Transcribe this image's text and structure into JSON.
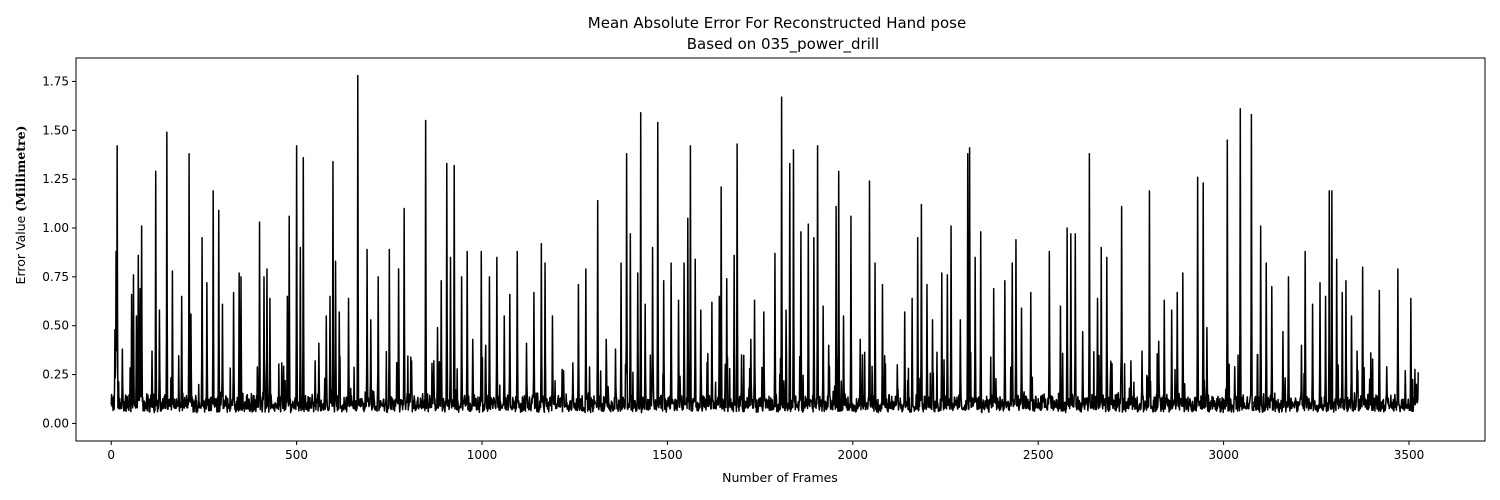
{
  "chart_data": {
    "type": "line",
    "title": "Mean Absolute Error For Reconstructed Hand pose",
    "subtitle": "Based on 035_power_drill",
    "xlabel": "Number of Frames",
    "ylabel_prefix": "Error Value ",
    "ylabel_unit": "(Millimetre)",
    "xlim": [
      -95,
      3705
    ],
    "ylim": [
      -0.09,
      1.87
    ],
    "xticks": [
      0,
      500,
      1000,
      1500,
      2000,
      2500,
      3000,
      3500
    ],
    "yticks": [
      0.0,
      0.25,
      0.5,
      0.75,
      1.0,
      1.25,
      1.5,
      1.75
    ],
    "xtick_labels": [
      "0",
      "500",
      "1000",
      "1500",
      "2000",
      "2500",
      "3000",
      "3500"
    ],
    "ytick_labels": [
      "0.00",
      "0.25",
      "0.50",
      "0.75",
      "1.00",
      "1.25",
      "1.50",
      "1.75"
    ],
    "grid": false,
    "series": [
      {
        "color": "#000000",
        "n_frames": 3526,
        "baseline_range": [
          0.02,
          0.16
        ],
        "peaks": [
          [
            10,
            0.48
          ],
          [
            13,
            0.88
          ],
          [
            16,
            1.42
          ],
          [
            30,
            0.38
          ],
          [
            55,
            0.66
          ],
          [
            60,
            0.76
          ],
          [
            68,
            0.55
          ],
          [
            73,
            0.86
          ],
          [
            78,
            0.69
          ],
          [
            82,
            1.01
          ],
          [
            110,
            0.37
          ],
          [
            120,
            1.29
          ],
          [
            130,
            0.58
          ],
          [
            150,
            1.49
          ],
          [
            165,
            0.78
          ],
          [
            190,
            0.65
          ],
          [
            210,
            1.38
          ],
          [
            215,
            0.56
          ],
          [
            245,
            0.95
          ],
          [
            258,
            0.72
          ],
          [
            275,
            1.19
          ],
          [
            290,
            1.09
          ],
          [
            300,
            0.61
          ],
          [
            330,
            0.67
          ],
          [
            345,
            0.77
          ],
          [
            350,
            0.75
          ],
          [
            400,
            1.03
          ],
          [
            412,
            0.75
          ],
          [
            420,
            0.79
          ],
          [
            428,
            0.64
          ],
          [
            460,
            0.31
          ],
          [
            475,
            0.65
          ],
          [
            480,
            1.06
          ],
          [
            500,
            1.42
          ],
          [
            510,
            0.9
          ],
          [
            518,
            1.36
          ],
          [
            550,
            0.32
          ],
          [
            560,
            0.41
          ],
          [
            580,
            0.55
          ],
          [
            590,
            0.65
          ],
          [
            598,
            1.34
          ],
          [
            605,
            0.83
          ],
          [
            615,
            0.57
          ],
          [
            640,
            0.64
          ],
          [
            665,
            1.78
          ],
          [
            690,
            0.89
          ],
          [
            700,
            0.53
          ],
          [
            720,
            0.75
          ],
          [
            750,
            0.89
          ],
          [
            775,
            0.79
          ],
          [
            790,
            1.1
          ],
          [
            810,
            0.32
          ],
          [
            848,
            1.55
          ],
          [
            870,
            0.32
          ],
          [
            880,
            0.49
          ],
          [
            890,
            0.73
          ],
          [
            905,
            1.33
          ],
          [
            915,
            0.85
          ],
          [
            925,
            1.32
          ],
          [
            945,
            0.75
          ],
          [
            960,
            0.88
          ],
          [
            975,
            0.43
          ],
          [
            998,
            0.88
          ],
          [
            1010,
            0.4
          ],
          [
            1020,
            0.75
          ],
          [
            1040,
            0.85
          ],
          [
            1060,
            0.55
          ],
          [
            1075,
            0.66
          ],
          [
            1095,
            0.88
          ],
          [
            1120,
            0.41
          ],
          [
            1140,
            0.67
          ],
          [
            1160,
            0.92
          ],
          [
            1170,
            0.82
          ],
          [
            1190,
            0.55
          ],
          [
            1220,
            0.27
          ],
          [
            1245,
            0.31
          ],
          [
            1260,
            0.71
          ],
          [
            1280,
            0.79
          ],
          [
            1312,
            1.14
          ],
          [
            1335,
            0.43
          ],
          [
            1360,
            0.38
          ],
          [
            1375,
            0.82
          ],
          [
            1390,
            1.38
          ],
          [
            1400,
            0.97
          ],
          [
            1420,
            0.77
          ],
          [
            1428,
            1.59
          ],
          [
            1440,
            0.61
          ],
          [
            1460,
            0.9
          ],
          [
            1474,
            1.54
          ],
          [
            1490,
            0.73
          ],
          [
            1510,
            0.82
          ],
          [
            1530,
            0.63
          ],
          [
            1545,
            0.82
          ],
          [
            1555,
            1.05
          ],
          [
            1562,
            1.42
          ],
          [
            1575,
            0.84
          ],
          [
            1590,
            0.58
          ],
          [
            1620,
            0.62
          ],
          [
            1640,
            0.65
          ],
          [
            1645,
            1.21
          ],
          [
            1660,
            0.74
          ],
          [
            1680,
            0.86
          ],
          [
            1688,
            1.43
          ],
          [
            1700,
            0.35
          ],
          [
            1725,
            0.43
          ],
          [
            1735,
            0.63
          ],
          [
            1760,
            0.57
          ],
          [
            1790,
            0.87
          ],
          [
            1808,
            1.67
          ],
          [
            1820,
            0.58
          ],
          [
            1830,
            1.33
          ],
          [
            1840,
            1.4
          ],
          [
            1860,
            0.98
          ],
          [
            1880,
            1.02
          ],
          [
            1895,
            0.95
          ],
          [
            1905,
            1.42
          ],
          [
            1920,
            0.6
          ],
          [
            1935,
            0.4
          ],
          [
            1955,
            1.11
          ],
          [
            1962,
            1.29
          ],
          [
            1975,
            0.55
          ],
          [
            1995,
            1.06
          ],
          [
            2020,
            0.43
          ],
          [
            2045,
            1.24
          ],
          [
            2060,
            0.82
          ],
          [
            2080,
            0.71
          ],
          [
            2120,
            0.3
          ],
          [
            2140,
            0.57
          ],
          [
            2160,
            0.64
          ],
          [
            2175,
            0.95
          ],
          [
            2185,
            1.12
          ],
          [
            2200,
            0.71
          ],
          [
            2215,
            0.53
          ],
          [
            2240,
            0.77
          ],
          [
            2255,
            0.76
          ],
          [
            2265,
            1.01
          ],
          [
            2290,
            0.53
          ],
          [
            2310,
            1.38
          ],
          [
            2315,
            1.41
          ],
          [
            2330,
            0.85
          ],
          [
            2345,
            0.98
          ],
          [
            2380,
            0.69
          ],
          [
            2410,
            0.73
          ],
          [
            2430,
            0.82
          ],
          [
            2440,
            0.94
          ],
          [
            2455,
            0.59
          ],
          [
            2480,
            0.67
          ],
          [
            2530,
            0.88
          ],
          [
            2560,
            0.6
          ],
          [
            2578,
            1.0
          ],
          [
            2588,
            0.97
          ],
          [
            2600,
            0.97
          ],
          [
            2620,
            0.47
          ],
          [
            2638,
            1.38
          ],
          [
            2660,
            0.64
          ],
          [
            2670,
            0.9
          ],
          [
            2685,
            0.85
          ],
          [
            2725,
            1.11
          ],
          [
            2750,
            0.32
          ],
          [
            2780,
            0.37
          ],
          [
            2800,
            1.19
          ],
          [
            2825,
            0.42
          ],
          [
            2840,
            0.63
          ],
          [
            2860,
            0.58
          ],
          [
            2875,
            0.67
          ],
          [
            2890,
            0.77
          ],
          [
            2930,
            1.26
          ],
          [
            2945,
            1.23
          ],
          [
            2955,
            0.49
          ],
          [
            3010,
            1.45
          ],
          [
            3030,
            0.29
          ],
          [
            3045,
            1.61
          ],
          [
            3075,
            1.58
          ],
          [
            3100,
            1.01
          ],
          [
            3115,
            0.82
          ],
          [
            3130,
            0.7
          ],
          [
            3160,
            0.47
          ],
          [
            3175,
            0.75
          ],
          [
            3210,
            0.4
          ],
          [
            3220,
            0.88
          ],
          [
            3240,
            0.61
          ],
          [
            3260,
            0.72
          ],
          [
            3275,
            0.65
          ],
          [
            3285,
            1.19
          ],
          [
            3292,
            1.19
          ],
          [
            3305,
            0.84
          ],
          [
            3320,
            0.67
          ],
          [
            3330,
            0.73
          ],
          [
            3345,
            0.55
          ],
          [
            3360,
            0.37
          ],
          [
            3375,
            0.8
          ],
          [
            3420,
            0.68
          ],
          [
            3440,
            0.29
          ],
          [
            3470,
            0.79
          ],
          [
            3490,
            0.27
          ],
          [
            3505,
            0.64
          ],
          [
            3520,
            0.2
          ]
        ]
      }
    ]
  }
}
